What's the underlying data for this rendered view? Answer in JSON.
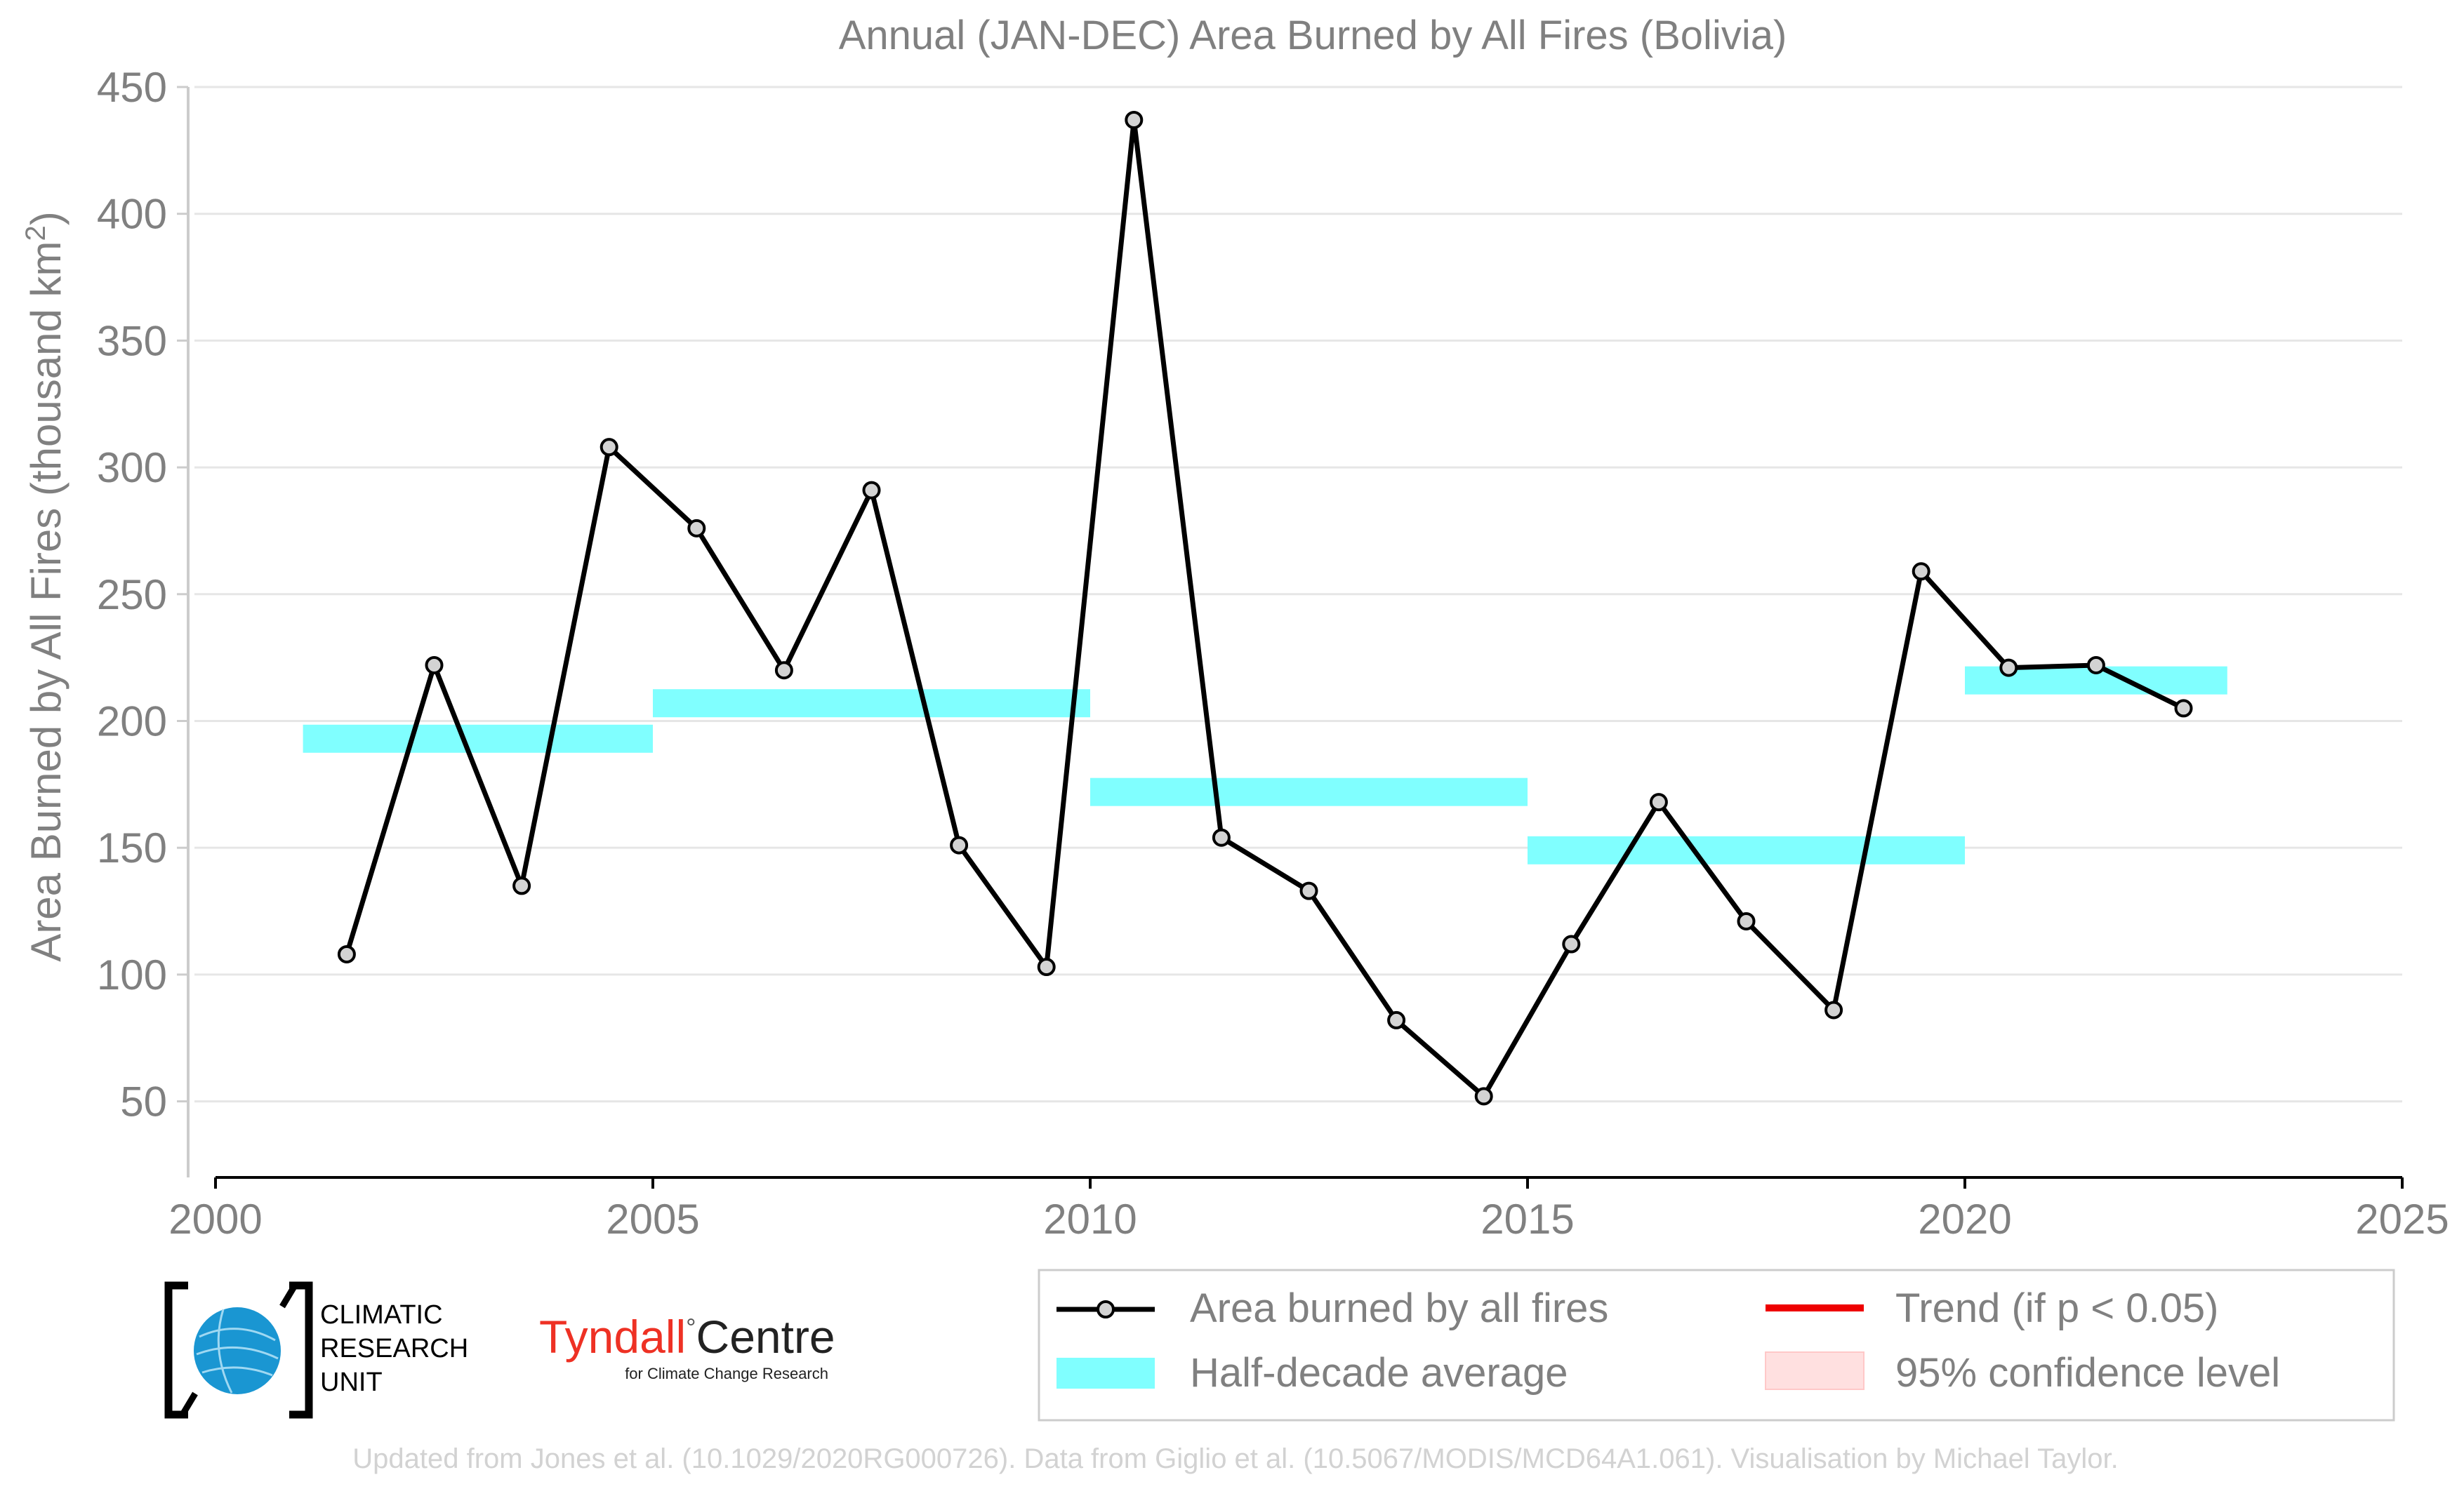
{
  "chart_data": {
    "type": "line",
    "title": "Annual (JAN-DEC) Area Burned by All Fires (Bolivia)",
    "xlabel": "",
    "ylabel": "Area Burned by All Fires (thousand km",
    "ylabel_sup": "2",
    "ylabel_close": ")",
    "xlim": [
      2000,
      2025
    ],
    "ylim": [
      20,
      450
    ],
    "xticks": [
      "2000",
      "2005",
      "2010",
      "2015",
      "2020",
      "2025"
    ],
    "yticks": [
      "50",
      "100",
      "150",
      "200",
      "250",
      "300",
      "350",
      "400",
      "450"
    ],
    "grid": true,
    "series": [
      {
        "name": "Area burned by all fires",
        "color": "#000000",
        "x": [
          2001.5,
          2002.5,
          2003.5,
          2004.5,
          2005.5,
          2006.5,
          2007.5,
          2008.5,
          2009.5,
          2010.5,
          2011.5,
          2012.5,
          2013.5,
          2014.5,
          2015.5,
          2016.5,
          2017.5,
          2018.5,
          2019.5,
          2020.5,
          2021.5,
          2022.5
        ],
        "values": [
          108,
          222,
          135,
          308,
          276,
          220,
          291,
          151,
          103,
          437,
          154,
          133,
          82,
          52,
          112,
          168,
          121,
          86,
          259,
          221,
          222,
          205
        ]
      }
    ],
    "half_decade_average": {
      "name": "Half-decade average",
      "color": "#80ffff",
      "segments": [
        {
          "x_start": 2001,
          "x_end": 2005,
          "value": 193
        },
        {
          "x_start": 2005,
          "x_end": 2010,
          "value": 207
        },
        {
          "x_start": 2010,
          "x_end": 2015,
          "value": 172
        },
        {
          "x_start": 2015,
          "x_end": 2020,
          "value": 149
        },
        {
          "x_start": 2020,
          "x_end": 2023,
          "value": 216
        }
      ]
    },
    "legend": {
      "placement": "bottom-right",
      "entries": [
        {
          "label": "Area burned by all fires",
          "kind": "line-marker",
          "color": "#000000"
        },
        {
          "label": "Trend (if p < 0.05)",
          "kind": "line",
          "color": "#ee0000"
        },
        {
          "label": "Half-decade average",
          "kind": "band",
          "color": "#80ffff"
        },
        {
          "label": "95% confidence level",
          "kind": "patch",
          "color": "#ffe0e0"
        }
      ]
    }
  },
  "logos": {
    "cru_lines": [
      "CLIMATIC",
      "RESEARCH",
      "UNIT"
    ],
    "tyndall_main": "Tyndall",
    "tyndall_degree": "°",
    "tyndall_centre": "Centre",
    "tyndall_sub": "for Climate Change Research"
  },
  "footer": "Updated from Jones et al. (10.1029/2020RG000726). Data from Giglio et al. (10.5067/MODIS/MCD64A1.061). Visualisation by Michael Taylor."
}
